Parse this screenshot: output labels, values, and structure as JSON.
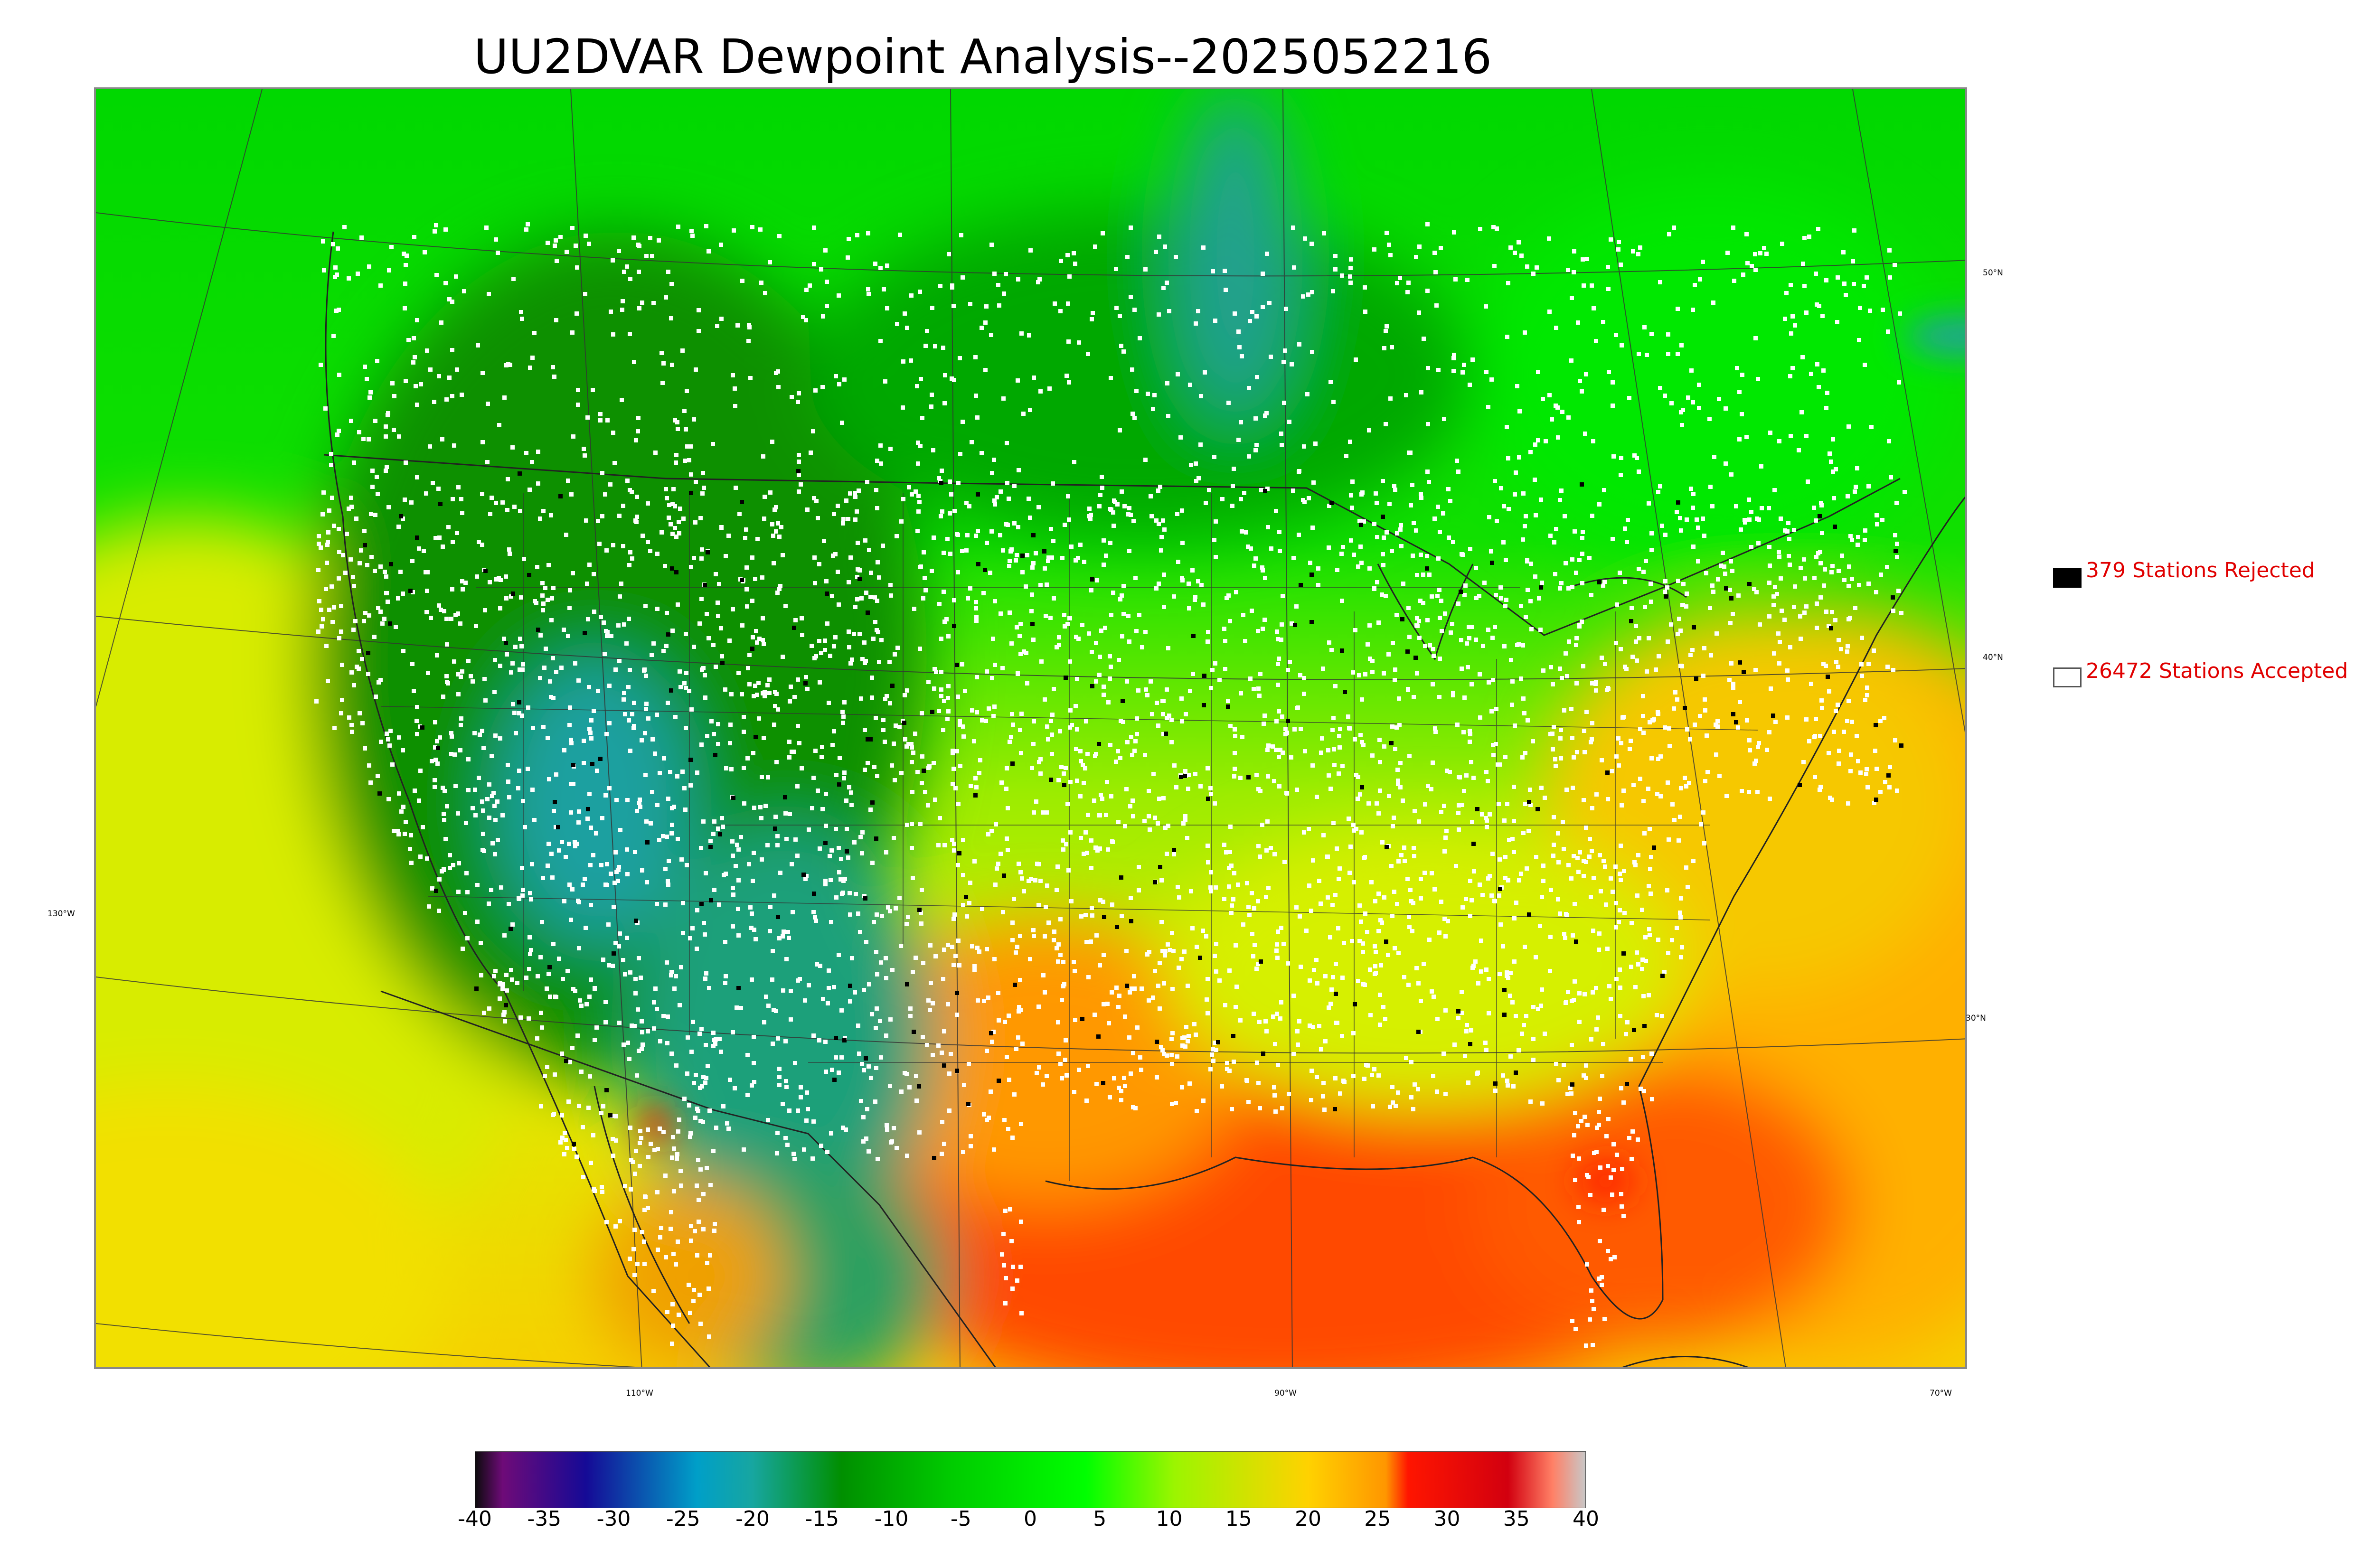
{
  "title": "UU2DVAR Dewpoint Analysis--2025052216",
  "map": {
    "lat_labels": [
      "50°N",
      "40°N",
      "30°N"
    ],
    "lon_labels": [
      "130°W",
      "110°W",
      "90°W",
      "70°W"
    ]
  },
  "legend": {
    "rejected": {
      "label": "379 Stations Rejected",
      "color": "#000000"
    },
    "accepted": {
      "label": "26472 Stations Accepted",
      "color": "#ffffff"
    }
  },
  "colorbar": {
    "ticks": [
      "-40",
      "-35",
      "-30",
      "-25",
      "-20",
      "-15",
      "-10",
      "-5",
      "0",
      "5",
      "10",
      "15",
      "20",
      "25",
      "30",
      "35",
      "40"
    ],
    "range": [
      -40,
      40
    ],
    "colors": [
      "#0b0b0b",
      "#6e0b78",
      "#150a96",
      "#009fc8",
      "#17a6a0",
      "#008f00",
      "#00cc00",
      "#00ff00",
      "#9cf500",
      "#ffd200",
      "#ff9600",
      "#ff1500",
      "#d2000f",
      "#ff8066",
      "#c8c8c8"
    ]
  }
}
